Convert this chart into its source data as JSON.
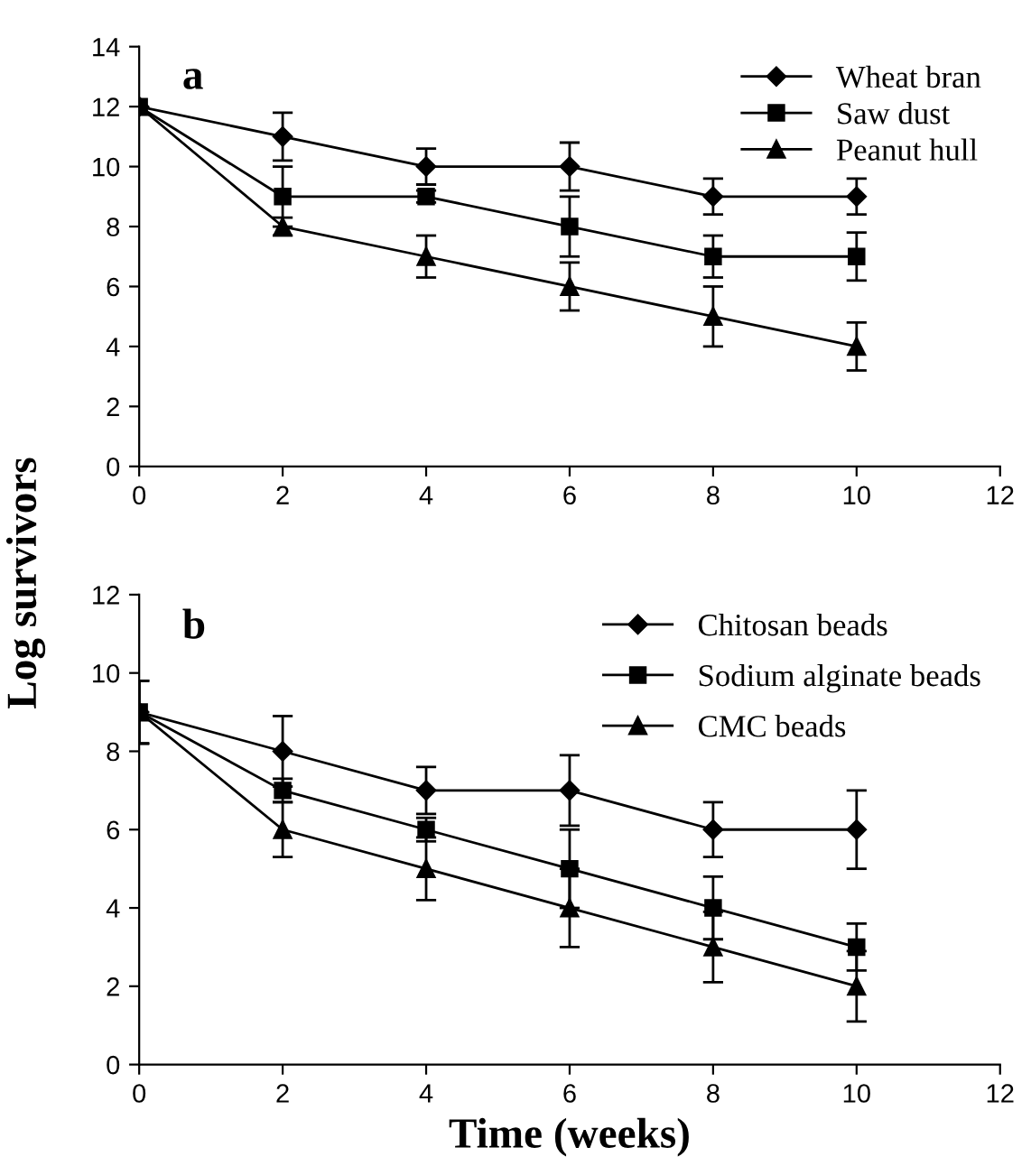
{
  "chart_data": [
    {
      "type": "line",
      "ylabel": "Log survivors",
      "annotations": [
        "a"
      ],
      "x": [
        0,
        2,
        4,
        6,
        8,
        10
      ],
      "xlim": [
        0,
        12
      ],
      "xticks": [
        0,
        2,
        4,
        6,
        8,
        10,
        12
      ],
      "ylim": [
        0,
        14
      ],
      "yticks": [
        0,
        2,
        4,
        6,
        8,
        10,
        12,
        14
      ],
      "legend": "top right",
      "grid": false,
      "series": [
        {
          "name": "Wheat bran",
          "color": "#000000",
          "marker": "diamond",
          "values": [
            12,
            11,
            10,
            10,
            9,
            9
          ],
          "errors": [
            null,
            0.8,
            0.6,
            0.8,
            0.6,
            0.6
          ]
        },
        {
          "name": "Saw dust",
          "color": "#000000",
          "marker": "square",
          "values": [
            12,
            9,
            9,
            8,
            7,
            7
          ],
          "errors": [
            null,
            1.0,
            0.2,
            1.0,
            0.7,
            0.8
          ]
        },
        {
          "name": "Peanut hull",
          "color": "#000000",
          "marker": "triangle",
          "values": [
            12,
            8,
            7,
            6,
            5,
            4
          ],
          "errors": [
            null,
            0.3,
            0.7,
            0.8,
            1.0,
            0.8
          ]
        }
      ]
    },
    {
      "type": "line",
      "xlabel": "Time (weeks)",
      "annotations": [
        "b"
      ],
      "x": [
        0,
        2,
        4,
        6,
        8,
        10
      ],
      "xlim": [
        0,
        12
      ],
      "xticks": [
        0,
        2,
        4,
        6,
        8,
        10,
        12
      ],
      "ylim": [
        0,
        12
      ],
      "yticks": [
        0,
        2,
        4,
        6,
        8,
        10,
        12
      ],
      "legend": "top right",
      "grid": false,
      "series": [
        {
          "name": "Chitosan beads",
          "color": "#000000",
          "marker": "diamond",
          "values": [
            9,
            8,
            7,
            7,
            6,
            6
          ],
          "errors": [
            0.8,
            0.9,
            0.6,
            0.9,
            0.7,
            1.0
          ]
        },
        {
          "name": "Sodium alginate beads",
          "color": "#000000",
          "marker": "square",
          "values": [
            9,
            7,
            6,
            5,
            4,
            3
          ],
          "errors": [
            0.8,
            0.3,
            0.3,
            1.0,
            0.8,
            0.6
          ]
        },
        {
          "name": "CMC beads",
          "color": "#000000",
          "marker": "triangle",
          "values": [
            9,
            6,
            5,
            4,
            3,
            2
          ],
          "errors": [
            0.8,
            0.7,
            0.8,
            1.0,
            0.9,
            0.9
          ]
        }
      ]
    }
  ]
}
